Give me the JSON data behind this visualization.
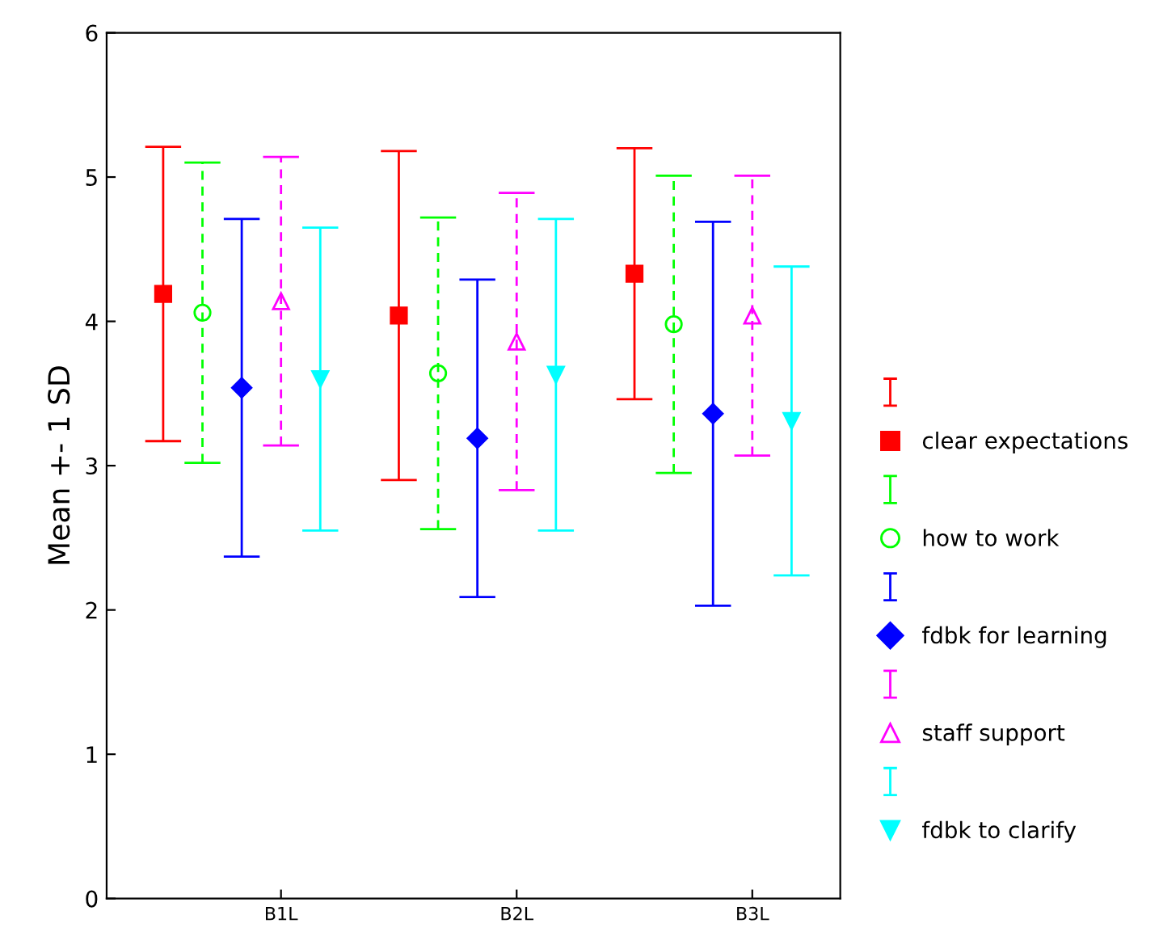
{
  "chart_data": {
    "type": "scatter",
    "ylabel": "Mean +- 1 SD",
    "categories": [
      null,
      null,
      null,
      "B1L",
      null,
      null,
      null,
      null,
      null,
      "B2L",
      null,
      null,
      null,
      null,
      null,
      "B3L",
      null
    ],
    "ylim": [
      0,
      6
    ],
    "yticks": [
      0,
      1,
      2,
      3,
      4,
      5,
      6
    ],
    "grid": false,
    "legend": "right",
    "series": [
      {
        "name": "clear expectations",
        "color": "#ff0000",
        "marker": "square",
        "line_style": "solid",
        "values": [
          4.19,
          null,
          null,
          null,
          null,
          null,
          4.04,
          null,
          null,
          null,
          null,
          null,
          4.33,
          null,
          null,
          null,
          null
        ],
        "errors": [
          1.02,
          null,
          null,
          null,
          null,
          null,
          1.14,
          null,
          null,
          null,
          null,
          null,
          0.87,
          null,
          null,
          null,
          null
        ]
      },
      {
        "name": "how to work",
        "color": "#00ff00",
        "marker": "circle",
        "line_style": "dashed",
        "values": [
          null,
          4.06,
          null,
          null,
          null,
          null,
          null,
          3.64,
          null,
          null,
          null,
          null,
          null,
          3.98,
          null,
          null,
          null
        ],
        "errors": [
          null,
          1.04,
          null,
          null,
          null,
          null,
          null,
          1.08,
          null,
          null,
          null,
          null,
          null,
          1.03,
          null,
          null,
          null
        ]
      },
      {
        "name": "fdbk for learning",
        "color": "#0000ff",
        "marker": "diamond",
        "line_style": "solid",
        "values": [
          null,
          null,
          3.54,
          null,
          null,
          null,
          null,
          null,
          3.19,
          null,
          null,
          null,
          null,
          null,
          3.36,
          null,
          null
        ],
        "errors": [
          null,
          null,
          1.17,
          null,
          null,
          null,
          null,
          null,
          1.1,
          null,
          null,
          null,
          null,
          null,
          1.33,
          null,
          null
        ]
      },
      {
        "name": "staff support",
        "color": "#ff00ff",
        "marker": "triangle",
        "line_style": "dashed",
        "values": [
          null,
          null,
          null,
          4.14,
          null,
          null,
          null,
          null,
          null,
          3.86,
          null,
          null,
          null,
          null,
          null,
          4.04,
          null
        ],
        "errors": [
          null,
          null,
          null,
          1.0,
          null,
          null,
          null,
          null,
          null,
          1.03,
          null,
          null,
          null,
          null,
          null,
          0.97,
          null
        ]
      },
      {
        "name": "fdbk to clarify",
        "color": "#00ffff",
        "marker": "triangle_down",
        "line_style": "solid",
        "values": [
          null,
          null,
          null,
          null,
          3.6,
          null,
          null,
          null,
          null,
          null,
          3.63,
          null,
          null,
          null,
          null,
          null,
          3.31
        ],
        "errors": [
          null,
          null,
          null,
          null,
          1.05,
          null,
          null,
          null,
          null,
          null,
          1.08,
          null,
          null,
          null,
          null,
          null,
          1.07
        ]
      }
    ]
  }
}
